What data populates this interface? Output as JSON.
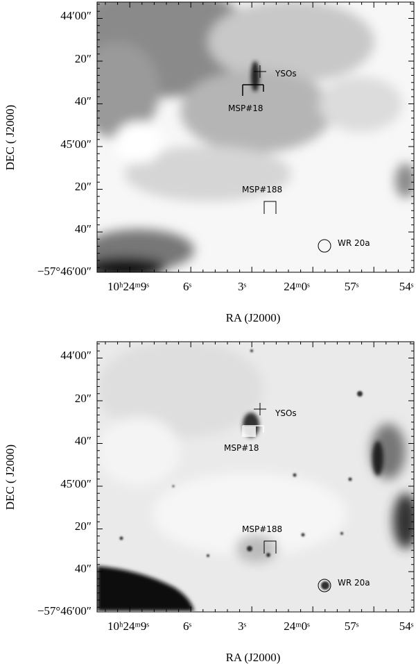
{
  "panels": [
    {
      "y_tick_labels": [
        "44′00″",
        "20″",
        "40″",
        "45′00″",
        "20″",
        "40″",
        "−57°46′00″"
      ],
      "x_tick_labels": [
        "10ʰ24ᵐ9ˢ",
        "6ˢ",
        "3ˢ",
        "24ᵐ0ˢ",
        "57ˢ",
        "54ˢ"
      ],
      "x_axis_label": "RA (J2000)",
      "y_axis_label": "DEC ( J2000)",
      "annotations": [
        "YSOs",
        "MSP#18",
        "MSP#188",
        "WR 20a"
      ]
    },
    {
      "y_tick_labels": [
        "44′00″",
        "20″",
        "40″",
        "45′00″",
        "20″",
        "40″",
        "−57°46′00″"
      ],
      "x_tick_labels": [
        "10ʰ24ᵐ9ˢ",
        "6ˢ",
        "3ˢ",
        "24ᵐ0ˢ",
        "57ˢ",
        "54ˢ"
      ],
      "x_axis_label": "RA (J2000)",
      "y_axis_label": "DEC ( J2000)",
      "annotations": [
        "YSOs",
        "MSP#18",
        "MSP#188",
        "WR 20a"
      ]
    }
  ]
}
